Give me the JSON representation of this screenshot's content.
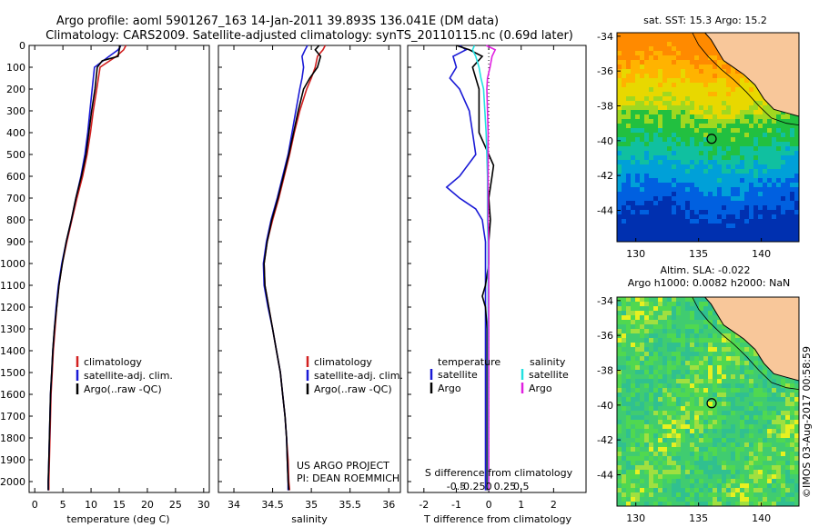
{
  "header": {
    "line1": "Argo profile: aoml 5901267_163 14-Jan-2011 39.893S 136.041E (DM data)",
    "line2": "Climatology: CARS2009. Satellite-adjusted climatology: synTS_20110115.nc (0.69d later)"
  },
  "credits": {
    "project": "US ARGO PROJECT",
    "pi": "PI: DEAN ROEMMICH",
    "stamp": "©IMOS 03-Aug-2017 00:58:59"
  },
  "colors": {
    "climatology": "#d22020",
    "satellite": "#1a1ad6",
    "argo": "#000000",
    "sal_satellite": "#22e0e0",
    "sal_argo": "#e020e0",
    "land": "#f8c79a"
  },
  "chart_data": [
    {
      "type": "line",
      "panel": "temperature",
      "xlabel": "temperature (deg C)",
      "xlim": [
        -1,
        31
      ],
      "ylim": [
        2050,
        0
      ],
      "yticks": [
        0,
        100,
        200,
        300,
        400,
        500,
        600,
        700,
        800,
        900,
        1000,
        1100,
        1200,
        1300,
        1400,
        1500,
        1600,
        1700,
        1800,
        1900,
        2000
      ],
      "xticks": [
        0,
        5,
        10,
        15,
        20,
        25,
        30
      ],
      "legend": [
        "climatology",
        "satellite-adj. clim.",
        "Argo(..raw -QC)"
      ],
      "series": [
        {
          "name": "climatology",
          "depth": [
            0,
            20,
            50,
            100,
            200,
            300,
            400,
            500,
            600,
            700,
            800,
            900,
            1000,
            1100,
            1200,
            1300,
            1400,
            1500,
            1600,
            1700,
            1800,
            1900,
            2000,
            2040
          ],
          "values": [
            16.2,
            15.8,
            14.5,
            11.6,
            11.0,
            10.4,
            9.9,
            9.3,
            8.5,
            7.5,
            6.6,
            5.7,
            4.9,
            4.3,
            3.9,
            3.6,
            3.3,
            3.1,
            2.9,
            2.8,
            2.7,
            2.6,
            2.5,
            2.5
          ]
        },
        {
          "name": "satellite-adj. clim.",
          "depth": [
            0,
            20,
            50,
            100,
            200,
            300,
            400,
            500,
            600,
            700,
            800,
            900,
            1000,
            1100,
            1200,
            1300,
            1400,
            1500,
            1600,
            1700,
            1800,
            1900,
            2000,
            2040
          ],
          "values": [
            15.3,
            14.8,
            13.2,
            10.6,
            10.2,
            9.8,
            9.4,
            8.9,
            8.2,
            7.3,
            6.5,
            5.6,
            4.8,
            4.2,
            3.8,
            3.5,
            3.2,
            3.0,
            2.8,
            2.7,
            2.6,
            2.5,
            2.4,
            2.4
          ]
        },
        {
          "name": "Argo(..raw -QC)",
          "depth": [
            0,
            20,
            50,
            70,
            100,
            200,
            300,
            400,
            500,
            600,
            700,
            800,
            900,
            1000,
            1100,
            1200,
            1300,
            1400,
            1500,
            1600,
            1700,
            1800,
            1900,
            2000,
            2040
          ],
          "values": [
            15.2,
            15.0,
            14.8,
            12.0,
            11.1,
            10.7,
            10.1,
            9.6,
            9.1,
            8.3,
            7.3,
            6.5,
            5.6,
            4.9,
            4.3,
            3.9,
            3.5,
            3.2,
            3.0,
            2.8,
            2.7,
            2.6,
            2.5,
            2.4,
            2.4
          ]
        }
      ]
    },
    {
      "type": "line",
      "panel": "salinity",
      "xlabel": "salinity",
      "xlim": [
        33.8,
        36.15
      ],
      "ylim": [
        2050,
        0
      ],
      "xticks": [
        34,
        34.5,
        35,
        35.5,
        36
      ],
      "legend": [
        "climatology",
        "satellite-adj. clim.",
        "Argo(..raw -QC)"
      ],
      "series": [
        {
          "name": "climatology",
          "depth": [
            0,
            20,
            50,
            100,
            150,
            200,
            300,
            400,
            500,
            600,
            700,
            800,
            900,
            1000,
            1100,
            1200,
            1300,
            1400,
            1500,
            1600,
            1700,
            1800,
            1900,
            2000,
            2040
          ],
          "values": [
            35.18,
            35.15,
            35.08,
            35.05,
            35.0,
            34.94,
            34.85,
            34.78,
            34.72,
            34.65,
            34.58,
            34.5,
            34.43,
            34.39,
            34.4,
            34.45,
            34.5,
            34.55,
            34.6,
            34.63,
            34.66,
            34.68,
            34.7,
            34.71,
            34.72
          ]
        },
        {
          "name": "satellite-adj. clim.",
          "depth": [
            0,
            20,
            50,
            100,
            150,
            200,
            300,
            400,
            500,
            600,
            700,
            800,
            900,
            1000,
            1100,
            1200,
            1300,
            1400,
            1500,
            1600,
            1700,
            1800,
            1900,
            2000,
            2040
          ],
          "values": [
            34.95,
            34.92,
            34.88,
            34.9,
            34.88,
            34.85,
            34.8,
            34.75,
            34.7,
            34.63,
            34.56,
            34.48,
            34.42,
            34.38,
            34.39,
            34.44,
            34.5,
            34.55,
            34.6,
            34.63,
            34.66,
            34.68,
            34.69,
            34.7,
            34.7
          ]
        },
        {
          "name": "Argo(..raw -QC)",
          "depth": [
            0,
            20,
            50,
            100,
            150,
            200,
            300,
            400,
            500,
            600,
            700,
            800,
            900,
            1000,
            1100,
            1200,
            1300,
            1400,
            1500,
            1600,
            1700,
            1800,
            1900,
            2000,
            2040
          ],
          "values": [
            35.1,
            35.05,
            35.12,
            35.08,
            34.98,
            34.9,
            34.83,
            34.77,
            34.71,
            34.64,
            34.57,
            34.49,
            34.43,
            34.39,
            34.4,
            34.45,
            34.5,
            34.55,
            34.6,
            34.63,
            34.66,
            34.68,
            34.69,
            34.7,
            34.71
          ]
        }
      ]
    },
    {
      "type": "line",
      "panel": "difference",
      "xlabel": "T difference from climatology",
      "toplabel": "S difference from climatology",
      "xlim": [
        -2.5,
        3.0
      ],
      "ylim": [
        2050,
        0
      ],
      "xticks": [
        -2,
        -1,
        0,
        1,
        2
      ],
      "sticks": [
        -0.5,
        -0.25,
        0,
        0.25,
        0.5
      ],
      "legend_titles": [
        "temperature",
        "salinity"
      ],
      "legend": [
        "satellite",
        "Argo",
        "satellite",
        "Argo"
      ],
      "series": [
        {
          "name": "T satellite",
          "depth": [
            0,
            20,
            50,
            100,
            150,
            200,
            300,
            400,
            500,
            600,
            650,
            700,
            750,
            800,
            850,
            900,
            1000,
            1100,
            1200,
            1300,
            1400,
            1500,
            1600,
            1700,
            1800,
            1900,
            2000,
            2040
          ],
          "values": [
            -0.9,
            -0.7,
            -1.1,
            -1.0,
            -1.2,
            -0.9,
            -0.6,
            -0.5,
            -0.4,
            -0.9,
            -1.3,
            -0.9,
            -0.4,
            -0.2,
            -0.15,
            -0.1,
            -0.1,
            -0.1,
            -0.1,
            -0.1,
            -0.1,
            -0.1,
            -0.1,
            -0.1,
            -0.1,
            -0.1,
            -0.1,
            -0.1
          ]
        },
        {
          "name": "T Argo",
          "depth": [
            0,
            20,
            50,
            100,
            200,
            300,
            400,
            500,
            550,
            600,
            700,
            800,
            900,
            1000,
            1100,
            1150,
            1200,
            1300,
            1400,
            1500,
            1600,
            1700,
            1800,
            1900,
            2000,
            2040
          ],
          "values": [
            -1.0,
            -0.6,
            -0.2,
            -0.5,
            -0.3,
            -0.3,
            -0.3,
            0.0,
            0.15,
            0.1,
            0.0,
            0.05,
            0.0,
            0.0,
            -0.1,
            -0.2,
            -0.1,
            -0.05,
            -0.05,
            -0.05,
            -0.05,
            -0.05,
            -0.05,
            -0.05,
            -0.05,
            -0.05
          ]
        },
        {
          "name": "S satellite",
          "depth": [
            0,
            20,
            50,
            100,
            150,
            200,
            300,
            400,
            500,
            600,
            700,
            800,
            900,
            1000,
            1100,
            1200,
            1300,
            1400,
            1500,
            1600,
            1700,
            1800,
            1900,
            2000,
            2040
          ],
          "values": [
            -0.22,
            -0.25,
            -0.2,
            -0.15,
            -0.12,
            -0.08,
            -0.06,
            -0.04,
            -0.03,
            -0.02,
            -0.02,
            -0.02,
            -0.01,
            -0.01,
            -0.01,
            -0.01,
            -0.01,
            -0.01,
            -0.01,
            -0.01,
            -0.01,
            -0.01,
            -0.01,
            -0.01,
            -0.01
          ]
        },
        {
          "name": "S Argo",
          "depth": [
            0,
            20,
            50,
            100,
            150,
            200,
            300,
            400,
            500,
            600,
            700,
            800,
            900,
            1000,
            1100,
            1200,
            1300,
            1400,
            1500,
            1600,
            1700,
            1800,
            1900,
            2000,
            2040
          ],
          "values": [
            -0.04,
            0.1,
            0.05,
            0.02,
            -0.02,
            -0.03,
            -0.02,
            -0.01,
            -0.01,
            -0.01,
            -0.01,
            -0.01,
            0.0,
            0.0,
            0.0,
            0.0,
            0.0,
            0.0,
            0.0,
            0.0,
            0.0,
            0.0,
            0.0,
            0.0,
            0.0
          ]
        }
      ]
    },
    {
      "type": "heatmap",
      "panel": "sst_map",
      "title": "sat. SST: 15.3 Argo: 15.2",
      "xticks": [
        130,
        135,
        140
      ],
      "yticks": [
        -34,
        -36,
        -38,
        -40,
        -42,
        -44
      ],
      "xlim": [
        128.5,
        143
      ],
      "ylim": [
        -45.8,
        -33.8
      ],
      "marker": {
        "lon": 136.041,
        "lat": -39.893
      }
    },
    {
      "type": "heatmap",
      "panel": "sla_map",
      "title": "Altim. SLA: -0.022",
      "title2": "Argo h1000: 0.0082 h2000: NaN",
      "xticks": [
        130,
        135,
        140
      ],
      "yticks": [
        -34,
        -36,
        -38,
        -40,
        -42,
        -44
      ],
      "xlim": [
        128.5,
        143
      ],
      "ylim": [
        -45.8,
        -33.8
      ],
      "marker": {
        "lon": 136.041,
        "lat": -39.893
      }
    }
  ]
}
